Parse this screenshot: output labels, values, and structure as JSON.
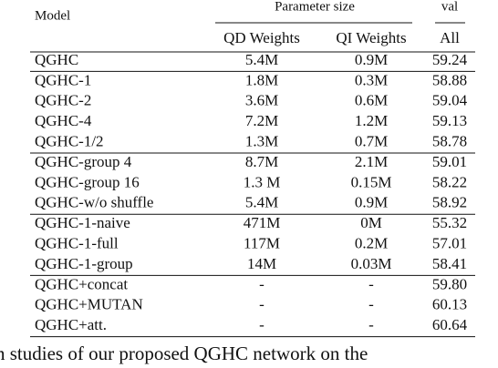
{
  "table": {
    "header": {
      "model": "Model",
      "param": "Parameter size",
      "val": "val",
      "qd": "QD Weights",
      "qi": "QI Weights",
      "all": "All"
    },
    "groups": [
      [
        [
          "QGHC",
          "5.4M",
          "0.9M",
          "59.24"
        ]
      ],
      [
        [
          "QGHC-1",
          "1.8M",
          "0.3M",
          "58.88"
        ],
        [
          "QGHC-2",
          "3.6M",
          "0.6M",
          "59.04"
        ],
        [
          "QGHC-4",
          "7.2M",
          "1.2M",
          "59.13"
        ],
        [
          "QGHC-1/2",
          "1.3M",
          "0.7M",
          "58.78"
        ]
      ],
      [
        [
          "QGHC-group 4",
          "8.7M",
          "2.1M",
          "59.01"
        ],
        [
          "QGHC-group 16",
          "1.3 M",
          "0.15M",
          "58.22"
        ],
        [
          "QGHC-w/o shuffle",
          "5.4M",
          "0.9M",
          "58.92"
        ]
      ],
      [
        [
          "QGHC-1-naive",
          "471M",
          "0M",
          "55.32"
        ],
        [
          "QGHC-1-full",
          "117M",
          "0.2M",
          "57.01"
        ],
        [
          "QGHC-1-group",
          "14M",
          "0.03M",
          "58.41"
        ]
      ],
      [
        [
          "QGHC+concat",
          "-",
          "-",
          "59.80"
        ],
        [
          "QGHC+MUTAN",
          "-",
          "-",
          "60.13"
        ],
        [
          "QGHC+att.",
          "-",
          "-",
          "60.64"
        ]
      ]
    ]
  },
  "caption": "n studies of our proposed QGHC network on the"
}
